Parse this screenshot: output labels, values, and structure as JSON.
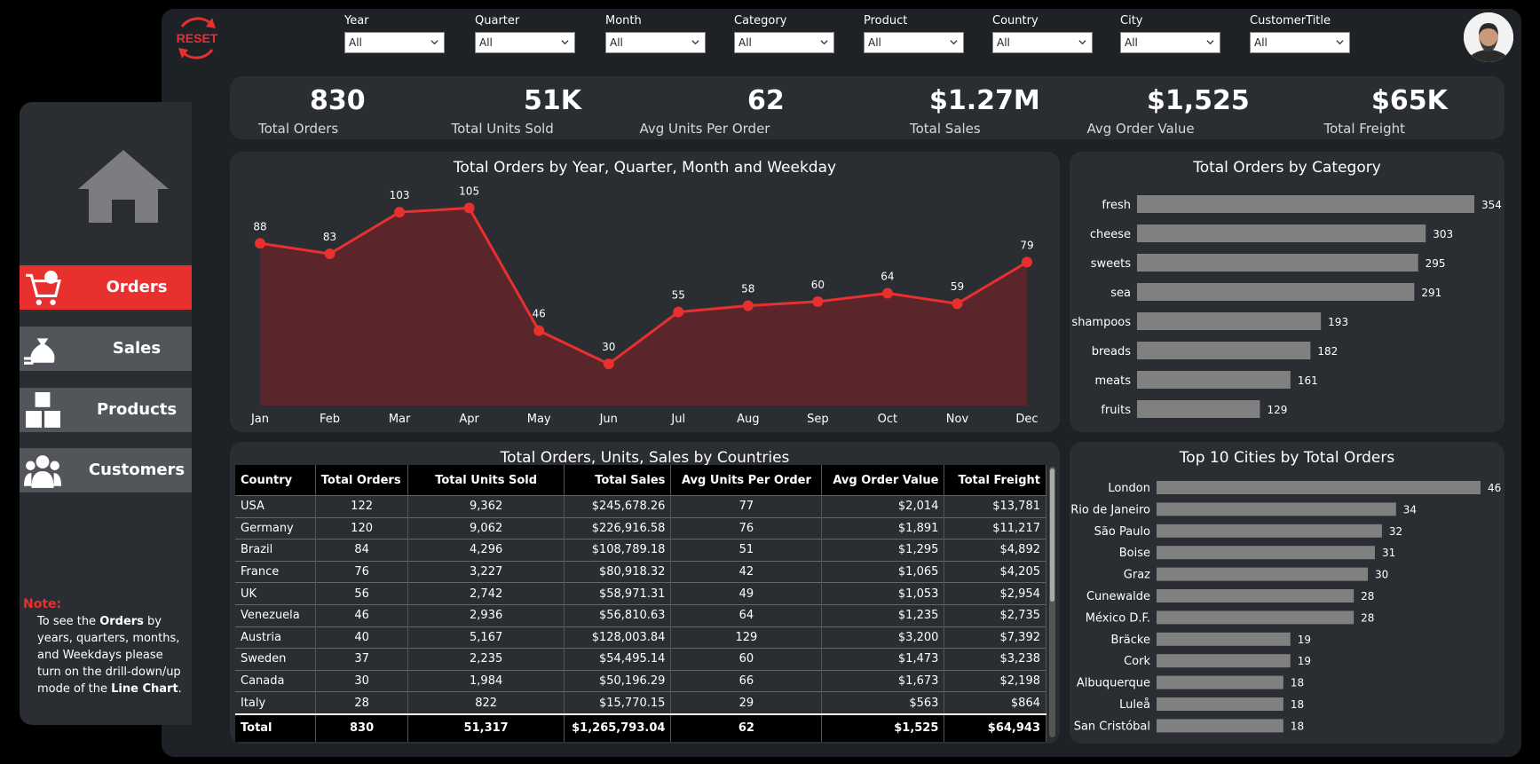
{
  "filters": [
    {
      "label": "Year",
      "value": "All"
    },
    {
      "label": "Quarter",
      "value": "All"
    },
    {
      "label": "Month",
      "value": "All"
    },
    {
      "label": "Category",
      "value": "All"
    },
    {
      "label": "Product",
      "value": "All"
    },
    {
      "label": "Country",
      "value": "All"
    },
    {
      "label": "City",
      "value": "All"
    },
    {
      "label": "CustomerTitle",
      "value": "All"
    }
  ],
  "reset_label": "RESET",
  "kpis": [
    {
      "value": "830",
      "label": "Total Orders",
      "icon": "cart-check-icon"
    },
    {
      "value": "51K",
      "label": "Total Units Sold",
      "icon": "receipt-icon"
    },
    {
      "value": "62",
      "label": "Avg Units Per Order",
      "icon": "boxes-icon"
    },
    {
      "value": "$1.27M",
      "label": "Total Sales",
      "icon": "money-bag-icon"
    },
    {
      "value": "$1,525",
      "label": "Avg Order Value",
      "icon": "hand-box-icon"
    },
    {
      "value": "$65K",
      "label": "Total Freight",
      "icon": "delivery-truck-icon"
    }
  ],
  "nav": [
    {
      "label": "Orders",
      "active": true
    },
    {
      "label": "Sales",
      "active": false
    },
    {
      "label": "Products",
      "active": false
    },
    {
      "label": "Customers",
      "active": false
    }
  ],
  "note": {
    "heading": "Note:",
    "parts": [
      "To see the ",
      "Orders",
      " by years, quarters, months, and Weekdays please turn on the drill-down/up mode of the ",
      "Line Chart",
      "."
    ]
  },
  "colors": {
    "accent": "#e8302e",
    "bar": "#808080",
    "area": "#5a262b",
    "panel": "#2a2e33"
  },
  "chart_data": [
    {
      "type": "line",
      "title": "Total Orders by Year, Quarter, Month and Weekday",
      "categories": [
        "Jan",
        "Feb",
        "Mar",
        "Apr",
        "May",
        "Jun",
        "Jul",
        "Aug",
        "Sep",
        "Oct",
        "Nov",
        "Dec"
      ],
      "values": [
        88,
        83,
        103,
        105,
        46,
        30,
        55,
        58,
        60,
        64,
        59,
        79
      ],
      "ylim": [
        0,
        115
      ]
    },
    {
      "type": "bar",
      "title": "Total Orders by Category",
      "categories": [
        "fresh",
        "cheese",
        "sweets",
        "sea",
        "shampoos",
        "breads",
        "meats",
        "fruits"
      ],
      "values": [
        354,
        303,
        295,
        291,
        193,
        182,
        161,
        129
      ]
    },
    {
      "type": "bar",
      "title": "Top 10 Cities by Total Orders",
      "categories": [
        "London",
        "Rio de Janeiro",
        "São Paulo",
        "Boise",
        "Graz",
        "Cunewalde",
        "México D.F.",
        "Bräcke",
        "Cork",
        "Albuquerque",
        "Luleå",
        "San Cristóbal"
      ],
      "values": [
        46,
        34,
        32,
        31,
        30,
        28,
        28,
        19,
        19,
        18,
        18,
        18
      ]
    },
    {
      "type": "table",
      "title": "Total Orders, Units, Sales by Countries",
      "columns": [
        "Country",
        "Total Orders",
        "Total Units Sold",
        "Total Sales",
        "Avg Units Per Order",
        "Avg Order Value",
        "Total Freight"
      ],
      "rows": [
        [
          "USA",
          "122",
          "9,362",
          "$245,678.26",
          "77",
          "$2,014",
          "$13,781"
        ],
        [
          "Germany",
          "120",
          "9,062",
          "$226,916.58",
          "76",
          "$1,891",
          "$11,217"
        ],
        [
          "Brazil",
          "84",
          "4,296",
          "$108,789.18",
          "51",
          "$1,295",
          "$4,892"
        ],
        [
          "France",
          "76",
          "3,227",
          "$80,918.32",
          "42",
          "$1,065",
          "$4,205"
        ],
        [
          "UK",
          "56",
          "2,742",
          "$58,971.31",
          "49",
          "$1,053",
          "$2,954"
        ],
        [
          "Venezuela",
          "46",
          "2,936",
          "$56,810.63",
          "64",
          "$1,235",
          "$2,735"
        ],
        [
          "Austria",
          "40",
          "5,167",
          "$128,003.84",
          "129",
          "$3,200",
          "$7,392"
        ],
        [
          "Sweden",
          "37",
          "2,235",
          "$54,495.14",
          "60",
          "$1,473",
          "$3,238"
        ],
        [
          "Canada",
          "30",
          "1,984",
          "$50,196.29",
          "66",
          "$1,673",
          "$2,198"
        ],
        [
          "Italy",
          "28",
          "822",
          "$15,770.15",
          "29",
          "$563",
          "$864"
        ]
      ],
      "total": [
        "Total",
        "830",
        "51,317",
        "$1,265,793.04",
        "62",
        "$1,525",
        "$64,943"
      ]
    }
  ]
}
